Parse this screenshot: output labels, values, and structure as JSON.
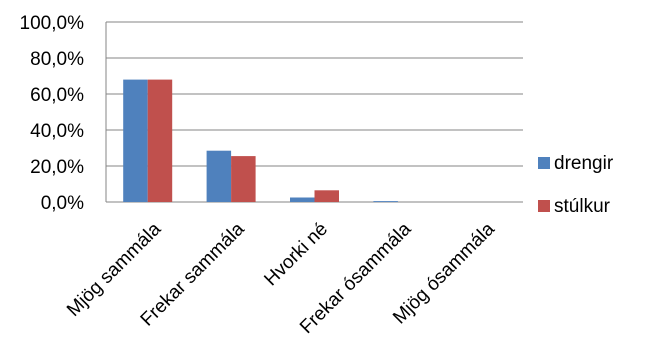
{
  "chart_data": {
    "type": "bar",
    "categories": [
      "Mjög sammála",
      "Frekar sammála",
      "Hvorki né",
      "Frekar ósammála",
      "Mjög ósammála"
    ],
    "series": [
      {
        "name": "drengir",
        "color": "#4F81BD",
        "values": [
          68.0,
          28.5,
          2.5,
          0.5,
          0.0
        ]
      },
      {
        "name": "stúlkur",
        "color": "#C0504D",
        "values": [
          68.0,
          25.5,
          6.5,
          0.0,
          0.0
        ]
      }
    ],
    "y_ticks": [
      "0,0%",
      "20,0%",
      "40,0%",
      "60,0%",
      "80,0%",
      "100,0%"
    ],
    "ylim": [
      0,
      100
    ],
    "grid": true,
    "legend_position": "right",
    "title": "",
    "xlabel": "",
    "ylabel": ""
  }
}
